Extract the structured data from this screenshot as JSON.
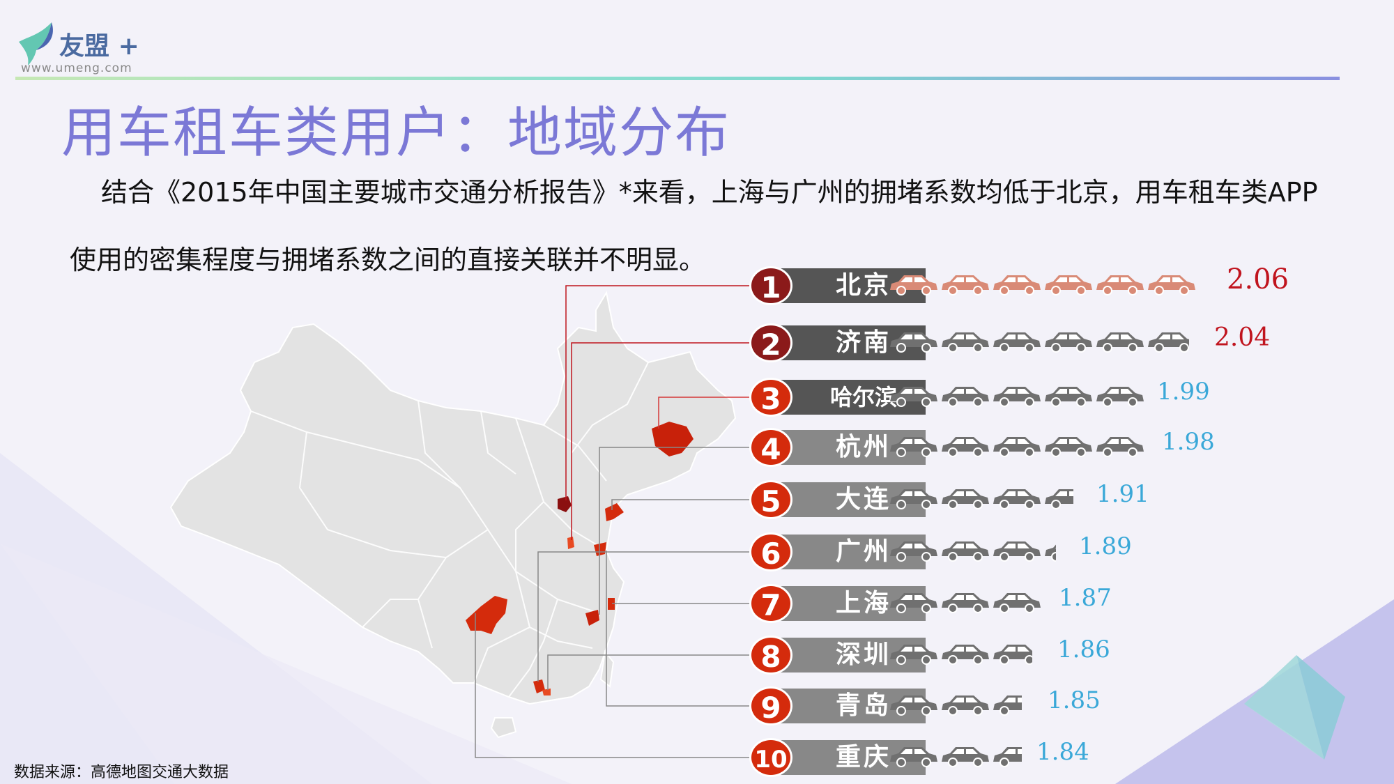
{
  "logo": {
    "brand": "友盟",
    "plus": "+",
    "url": "www.umeng.com"
  },
  "title": "用车租车类用户：地域分布",
  "paragraph_line1": "结合《2015年中国主要城市交通分析报告》*来看，上海与广州的拥堵系数均低于北京，用车租车类APP",
  "paragraph_line2": "使用的密集程度与拥堵系数之间的直接关联并不明显。",
  "source": "数据来源：高德地图交通大数据",
  "icons": {
    "car": "car-icon",
    "logo": "bird-logo-icon"
  },
  "colors": {
    "top_red": "#8b1a1a",
    "value_red": "#c0141e",
    "value_blue": "#3aa8d8",
    "car_top": "#d98a76",
    "car_gray": "#707070",
    "label_dark": "#555555",
    "label_gray": "#888888",
    "map_fill": "#e3e3e3",
    "highlight": "#d42b0c",
    "title": "#7b78d6"
  },
  "ranking": [
    {
      "rank": "1",
      "city": "北京",
      "value": "2.06",
      "cars": 6.0
    },
    {
      "rank": "2",
      "city": "济南",
      "value": "2.04",
      "cars": 5.85
    },
    {
      "rank": "3",
      "city": "哈尔滨",
      "value": "1.99",
      "cars": 5.0
    },
    {
      "rank": "4",
      "city": "杭州",
      "value": "1.98",
      "cars": 5.0
    },
    {
      "rank": "5",
      "city": "大连",
      "value": "1.91",
      "cars": 3.6
    },
    {
      "rank": "6",
      "city": "广州",
      "value": "1.89",
      "cars": 3.25
    },
    {
      "rank": "7",
      "city": "上海",
      "value": "1.87",
      "cars": 3.0
    },
    {
      "rank": "8",
      "city": "深圳",
      "value": "1.86",
      "cars": 2.8
    },
    {
      "rank": "9",
      "city": "青岛",
      "value": "1.85",
      "cars": 2.6
    },
    {
      "rank": "10",
      "city": "重庆",
      "value": "1.84",
      "cars": 2.6
    }
  ]
}
